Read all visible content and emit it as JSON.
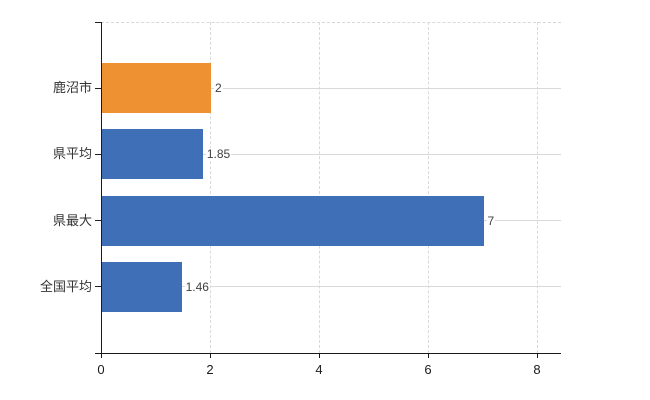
{
  "chart_data": {
    "type": "bar",
    "orientation": "horizontal",
    "title": "",
    "xlabel": "",
    "ylabel": "",
    "categories": [
      "鹿沼市",
      "県平均",
      "県最大",
      "全国平均"
    ],
    "values": [
      2,
      1.85,
      7,
      1.46
    ],
    "value_labels": [
      "2",
      "1.85",
      "7",
      "1.46"
    ],
    "bar_colors": [
      "#ee9133",
      "#3e6fb7",
      "#3e6fb7",
      "#3e6fb7"
    ],
    "xlim": [
      0,
      8.44
    ],
    "x_ticks": [
      0,
      2,
      4,
      6,
      8
    ],
    "x_tick_labels": [
      "0",
      "2",
      "4",
      "6",
      "8"
    ],
    "legend": "none",
    "grid": {
      "vertical": "dashed at x ticks",
      "horizontal": "solid line through each category center, dashed line at plot top"
    },
    "colors": {
      "highlight_bar": "#ee9133",
      "default_bar": "#3e6fb7",
      "gridline": "#d9d9d9",
      "axis": "#1a1a1a",
      "category_text": "#333333",
      "value_text": "#404040",
      "background": "#ffffff"
    }
  }
}
